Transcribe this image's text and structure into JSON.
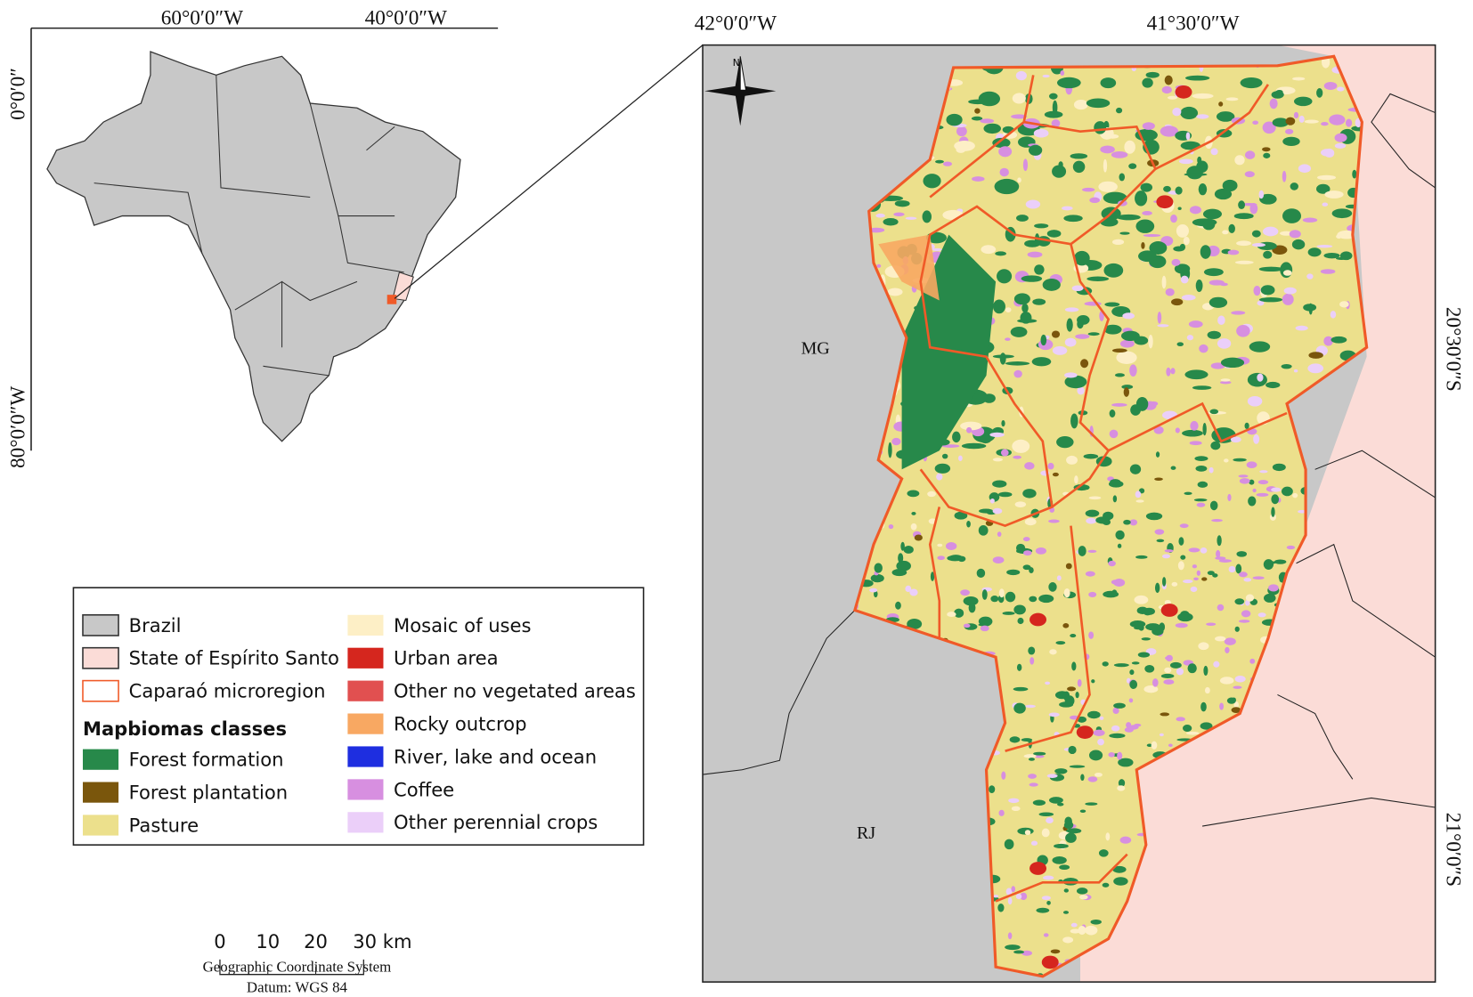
{
  "inset_map": {
    "lon_labels": [
      "60°0′0″W",
      "40°0′0″W"
    ],
    "lat_labels": [
      "0°0′0″",
      "80°0′0″W"
    ]
  },
  "main_map": {
    "lon_labels": [
      "42°0′0″W",
      "41°30′0″W"
    ],
    "lat_labels": [
      "20°30′0″S",
      "21°0′0″S"
    ],
    "north_arrow": "N",
    "state_labels": [
      "MG",
      "RJ"
    ]
  },
  "legend": {
    "layers": [
      {
        "label": "Brazil",
        "fill": "#c8c8c8",
        "stroke": "#333333"
      },
      {
        "label": "State of Espírito Santo",
        "fill": "#fbdcd7",
        "stroke": "#333333"
      },
      {
        "label": "Caparaó microregion",
        "fill": "#ffffff",
        "stroke": "#f05a28"
      }
    ],
    "heading": "Mapbiomas classes",
    "classes": [
      {
        "label": "Forest formation",
        "color": "#27894a"
      },
      {
        "label": "Forest plantation",
        "color": "#7a560c"
      },
      {
        "label": "Pasture",
        "color": "#ece08c"
      },
      {
        "label": "Mosaic of uses",
        "color": "#fdefc6"
      },
      {
        "label": "Urban area",
        "color": "#d5261e"
      },
      {
        "label": "Other no vegetated areas",
        "color": "#e15050"
      },
      {
        "label": "Rocky outcrop",
        "color": "#f8a862"
      },
      {
        "label": "River, lake and ocean",
        "color": "#1e2ee0"
      },
      {
        "label": "Coffee",
        "color": "#d78fe0"
      },
      {
        "label": "Other perennial crops",
        "color": "#ebcff9"
      }
    ]
  },
  "scale_bar": {
    "ticks": [
      "0",
      "10",
      "20",
      "30 km"
    ]
  },
  "crs": {
    "system": "Geographic Coordinate System",
    "datum": "Datum: WGS 84"
  }
}
